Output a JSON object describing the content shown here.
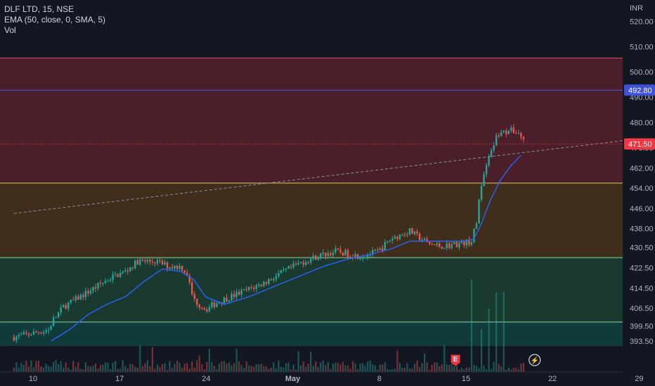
{
  "legend": {
    "symbol_line": "DLF LTD, 15, NSE",
    "ema_line": "EMA (50, close, 0, SMA, 5)",
    "vol_line": "Vol"
  },
  "colors": {
    "background": "#131722",
    "up": "#26a69a",
    "down": "#ef5350",
    "ema": "#2962ff",
    "hline": "#3f51d8",
    "zone_red": "#4a1f2a",
    "zone_orange": "#3f2e1c",
    "zone_green": "#1a3a30",
    "zone_teal": "#113a3a"
  },
  "chart_data": {
    "type": "candlestick",
    "symbol": "DLF LTD",
    "interval": "15",
    "exchange": "NSE",
    "currency": "INR",
    "ylim": [
      391.5,
      523
    ],
    "y_ticks": [
      "520.00",
      "510.00",
      "500.00",
      "490.00",
      "480.00",
      "470.00",
      "462.00",
      "454.00",
      "446.00",
      "438.00",
      "430.50",
      "422.50",
      "414.50",
      "406.50",
      "399.50",
      "393.50"
    ],
    "x_ticks": [
      "10",
      "17",
      "24",
      "May",
      "8",
      "15",
      "22",
      "29"
    ],
    "x_tick_index": [
      0,
      7,
      14,
      21,
      28,
      35,
      42,
      49
    ],
    "price_path": [
      [
        -2.0,
        395
      ],
      [
        -1.0,
        396
      ],
      [
        0.8,
        398
      ],
      [
        1.2,
        402
      ],
      [
        2.0,
        407
      ],
      [
        3.0,
        410
      ],
      [
        4.0,
        413
      ],
      [
        5.0,
        416
      ],
      [
        6.0,
        419
      ],
      [
        7.0,
        421
      ],
      [
        8.0,
        425
      ],
      [
        9.5,
        425
      ],
      [
        10.5,
        423
      ],
      [
        11.5,
        423
      ],
      [
        12.0,
        420
      ],
      [
        12.5,
        410
      ],
      [
        13.5,
        406
      ],
      [
        14.5,
        409
      ],
      [
        16.0,
        412
      ],
      [
        17.0,
        414
      ],
      [
        18.0,
        416
      ],
      [
        19.5,
        420
      ],
      [
        21.0,
        424
      ],
      [
        22.5,
        427
      ],
      [
        24.0,
        429
      ],
      [
        26.0,
        427
      ],
      [
        27.5,
        429
      ],
      [
        28.5,
        434
      ],
      [
        30.0,
        437
      ],
      [
        31.5,
        432
      ],
      [
        32.5,
        431
      ],
      [
        34.0,
        432
      ],
      [
        35.0,
        433
      ],
      [
        35.4,
        441
      ],
      [
        35.8,
        456
      ],
      [
        36.3,
        464
      ],
      [
        37.0,
        474
      ],
      [
        38.0,
        477
      ],
      [
        38.8,
        476
      ],
      [
        39.3,
        472
      ]
    ],
    "last_bar_index": 39.3,
    "ema_path": [
      [
        1.0,
        393.5
      ],
      [
        2.5,
        398
      ],
      [
        4.0,
        404
      ],
      [
        5.5,
        408
      ],
      [
        7.0,
        411
      ],
      [
        8.5,
        417
      ],
      [
        10.0,
        422
      ],
      [
        11.5,
        421
      ],
      [
        12.5,
        418
      ],
      [
        13.5,
        411
      ],
      [
        15.0,
        408
      ],
      [
        17.0,
        411
      ],
      [
        19.0,
        415
      ],
      [
        21.0,
        419
      ],
      [
        23.0,
        423
      ],
      [
        25.0,
        426
      ],
      [
        27.0,
        428
      ],
      [
        28.5,
        430
      ],
      [
        30.0,
        433
      ],
      [
        31.5,
        433
      ],
      [
        33.0,
        433
      ],
      [
        34.5,
        433
      ],
      [
        35.2,
        434
      ],
      [
        35.8,
        440
      ],
      [
        36.5,
        449
      ],
      [
        37.3,
        457
      ],
      [
        38.2,
        463
      ],
      [
        39.0,
        467
      ]
    ],
    "zones": [
      {
        "name": "upper-resistance-zone",
        "top": 505.5,
        "bottom": 456.0,
        "fill": "#4a1f2a",
        "line": "#e05567"
      },
      {
        "name": "middle-zone",
        "top": 456.0,
        "bottom": 426.5,
        "fill": "#3f2e1c",
        "line": "#e8c66a"
      },
      {
        "name": "lower-zone",
        "top": 426.5,
        "bottom": 401.0,
        "fill": "#1a3a30",
        "line": "#8bd6a6"
      },
      {
        "name": "bottom-zone",
        "top": 401.0,
        "bottom": 391.5,
        "fill": "#113a3a",
        "line": "#8bd6a6"
      }
    ],
    "horizontal_line": {
      "value": 492.8,
      "label": "492.80",
      "color": "#3f51d8"
    },
    "last_price": {
      "value": 471.5,
      "label": "471.50",
      "color": "#f23645"
    },
    "trendline": {
      "from": [
        -2.0,
        444.0
      ],
      "to": [
        57.0,
        478.5
      ],
      "color": "#8a8e97"
    },
    "markers": [
      {
        "name": "earnings-marker",
        "label": "E",
        "at_index": 33.7
      },
      {
        "name": "dividend-lightning-marker",
        "label": "⚡",
        "at_index": 40.1
      }
    ],
    "volume": {
      "visible": true
    }
  }
}
